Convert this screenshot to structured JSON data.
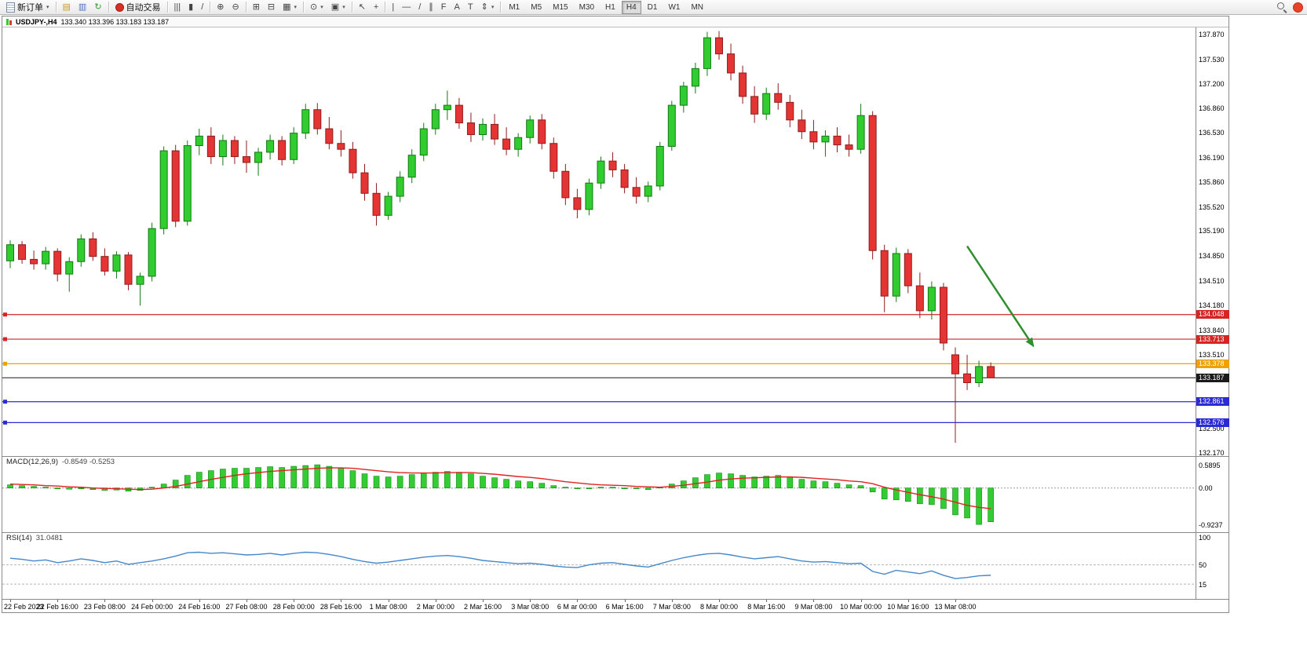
{
  "toolbar": {
    "new_order_label": "新订单",
    "autotrading_label": "自动交易",
    "window_icons": [
      {
        "name": "market-watch-icon",
        "glyph": "▤",
        "color": "#c79a1e"
      },
      {
        "name": "navigator-icon",
        "glyph": "▥",
        "color": "#4a6fc3"
      },
      {
        "name": "refresh-icon",
        "glyph": "↻",
        "color": "#2f9e2f"
      }
    ],
    "chart_icons": [
      {
        "name": "ohlc-bars-icon",
        "glyph": "|||"
      },
      {
        "name": "candlestick-chart-icon",
        "glyph": "▮"
      },
      {
        "name": "line-chart-icon",
        "glyph": "/"
      },
      {
        "sep": true
      },
      {
        "name": "zoom-in-icon",
        "glyph": "⊕"
      },
      {
        "name": "zoom-out-icon",
        "glyph": "⊖"
      },
      {
        "sep": true
      },
      {
        "name": "tile-windows-icon",
        "glyph": "⊞"
      },
      {
        "name": "cascade-windows-icon",
        "glyph": "⊟"
      },
      {
        "name": "new-chart-icon",
        "glyph": "▦",
        "dropdown": true
      },
      {
        "sep": true
      },
      {
        "name": "period-clock-icon",
        "glyph": "⊙",
        "dropdown": true
      },
      {
        "name": "templates-icon",
        "glyph": "▣",
        "dropdown": true
      },
      {
        "sep": true
      }
    ],
    "tool_icons": [
      {
        "name": "cursor-icon",
        "glyph": "↖"
      },
      {
        "name": "crosshair-icon",
        "glyph": "+"
      },
      {
        "sep": true
      },
      {
        "name": "vertical-line-icon",
        "glyph": "|"
      },
      {
        "name": "horizontal-line-icon",
        "glyph": "—"
      },
      {
        "name": "trendline-icon",
        "glyph": "/"
      },
      {
        "name": "channel-icon",
        "glyph": "∥"
      },
      {
        "name": "fibonacci-icon",
        "glyph": "F"
      },
      {
        "name": "text-icon",
        "glyph": "A"
      },
      {
        "name": "text-label-icon",
        "glyph": "T"
      },
      {
        "name": "arrows-icon",
        "glyph": "⇕",
        "dropdown": true
      },
      {
        "sep": true
      }
    ],
    "timeframes": [
      "M1",
      "M5",
      "M15",
      "M30",
      "H1",
      "H4",
      "D1",
      "W1",
      "MN"
    ],
    "active_timeframe": "H4"
  },
  "chart_data": [
    {
      "type": "candlestick",
      "title": "USDJPY-,H4",
      "ohlc_text": "133.340 133.396 133.183 133.187",
      "current_ohlc": {
        "open": 133.34,
        "high": 133.396,
        "low": 133.183,
        "close": 133.187
      },
      "ylim": [
        132.12,
        137.96
      ],
      "price_axis_ticks": [
        "137.870",
        "137.530",
        "137.200",
        "136.860",
        "136.530",
        "136.190",
        "135.860",
        "135.520",
        "135.190",
        "134.850",
        "134.510",
        "134.180",
        "133.840",
        "133.510",
        "132.500",
        "132.170"
      ],
      "label_every_n_candles": 4,
      "x_labels": [
        "22 Feb 2023",
        "22 Feb 16:00",
        "23 Feb 08:00",
        "24 Feb 00:00",
        "24 Feb 16:00",
        "27 Feb 08:00",
        "28 Feb 00:00",
        "28 Feb 16:00",
        "1 Mar 08:00",
        "2 Mar 00:00",
        "2 Mar 16:00",
        "3 Mar 08:00",
        "6 M ar 00:00",
        "6 Mar 16:00",
        "7 Mar 08:00",
        "8 Mar 00:00",
        "8 Mar 16:00",
        "9 Mar 08:00",
        "10 Mar 00:00",
        "10 Mar 16:00",
        "13 Mar 08:00"
      ],
      "candles_ohlc": [
        [
          134.78,
          135.06,
          134.68,
          135.0
        ],
        [
          135.0,
          135.05,
          134.74,
          134.8
        ],
        [
          134.8,
          134.92,
          134.66,
          134.74
        ],
        [
          134.74,
          134.97,
          134.66,
          134.91
        ],
        [
          134.91,
          134.95,
          134.5,
          134.6
        ],
        [
          134.6,
          134.83,
          134.36,
          134.77
        ],
        [
          134.77,
          135.14,
          134.7,
          135.08
        ],
        [
          135.08,
          135.17,
          134.78,
          134.84
        ],
        [
          134.84,
          134.95,
          134.58,
          134.64
        ],
        [
          134.64,
          134.91,
          134.54,
          134.86
        ],
        [
          134.86,
          134.9,
          134.38,
          134.46
        ],
        [
          134.46,
          134.62,
          134.17,
          134.57
        ],
        [
          134.57,
          135.3,
          134.5,
          135.22
        ],
        [
          135.22,
          136.34,
          135.14,
          136.28
        ],
        [
          136.28,
          136.36,
          135.24,
          135.32
        ],
        [
          135.32,
          136.42,
          135.26,
          136.35
        ],
        [
          136.35,
          136.58,
          136.22,
          136.48
        ],
        [
          136.48,
          136.6,
          136.1,
          136.2
        ],
        [
          136.2,
          136.5,
          136.08,
          136.42
        ],
        [
          136.42,
          136.48,
          136.1,
          136.2
        ],
        [
          136.2,
          136.42,
          135.98,
          136.12
        ],
        [
          136.12,
          136.32,
          135.94,
          136.26
        ],
        [
          136.26,
          136.5,
          136.16,
          136.42
        ],
        [
          136.42,
          136.48,
          136.08,
          136.16
        ],
        [
          136.16,
          136.6,
          136.1,
          136.52
        ],
        [
          136.52,
          136.92,
          136.44,
          136.84
        ],
        [
          136.84,
          136.93,
          136.5,
          136.58
        ],
        [
          136.58,
          136.74,
          136.3,
          136.38
        ],
        [
          136.38,
          136.56,
          136.2,
          136.3
        ],
        [
          136.3,
          136.4,
          135.9,
          135.98
        ],
        [
          135.98,
          136.1,
          135.6,
          135.7
        ],
        [
          135.7,
          135.84,
          135.26,
          135.4
        ],
        [
          135.4,
          135.72,
          135.34,
          135.66
        ],
        [
          135.66,
          136.0,
          135.58,
          135.92
        ],
        [
          135.92,
          136.3,
          135.84,
          136.22
        ],
        [
          136.22,
          136.66,
          136.14,
          136.58
        ],
        [
          136.58,
          136.92,
          136.5,
          136.84
        ],
        [
          136.84,
          137.1,
          136.7,
          136.9
        ],
        [
          136.9,
          137.0,
          136.58,
          136.66
        ],
        [
          136.66,
          136.8,
          136.4,
          136.5
        ],
        [
          136.5,
          136.72,
          136.42,
          136.64
        ],
        [
          136.64,
          136.78,
          136.36,
          136.44
        ],
        [
          136.44,
          136.6,
          136.22,
          136.3
        ],
        [
          136.3,
          136.52,
          136.2,
          136.46
        ],
        [
          136.46,
          136.76,
          136.38,
          136.7
        ],
        [
          136.7,
          136.78,
          136.3,
          136.38
        ],
        [
          136.38,
          136.46,
          135.9,
          136.0
        ],
        [
          136.0,
          136.1,
          135.54,
          135.64
        ],
        [
          135.64,
          135.76,
          135.36,
          135.48
        ],
        [
          135.48,
          135.9,
          135.4,
          135.84
        ],
        [
          135.84,
          136.2,
          135.76,
          136.14
        ],
        [
          136.14,
          136.26,
          135.92,
          136.02
        ],
        [
          136.02,
          136.1,
          135.7,
          135.78
        ],
        [
          135.78,
          135.92,
          135.56,
          135.66
        ],
        [
          135.66,
          135.86,
          135.58,
          135.8
        ],
        [
          135.8,
          136.4,
          135.74,
          136.34
        ],
        [
          136.34,
          136.96,
          136.28,
          136.9
        ],
        [
          136.9,
          137.22,
          136.8,
          137.16
        ],
        [
          137.16,
          137.48,
          137.06,
          137.4
        ],
        [
          137.4,
          137.9,
          137.3,
          137.82
        ],
        [
          137.82,
          137.91,
          137.52,
          137.6
        ],
        [
          137.6,
          137.74,
          137.24,
          137.34
        ],
        [
          137.34,
          137.44,
          136.92,
          137.02
        ],
        [
          137.02,
          137.16,
          136.66,
          136.78
        ],
        [
          136.78,
          137.14,
          136.7,
          137.06
        ],
        [
          137.06,
          137.2,
          136.84,
          136.94
        ],
        [
          136.94,
          137.04,
          136.6,
          136.7
        ],
        [
          136.7,
          136.84,
          136.44,
          136.54
        ],
        [
          136.54,
          136.7,
          136.3,
          136.4
        ],
        [
          136.4,
          136.56,
          136.2,
          136.48
        ],
        [
          136.48,
          136.6,
          136.26,
          136.36
        ],
        [
          136.36,
          136.5,
          136.2,
          136.3
        ],
        [
          136.3,
          136.92,
          136.24,
          136.76
        ],
        [
          136.76,
          136.82,
          134.8,
          134.92
        ],
        [
          134.92,
          135.0,
          134.08,
          134.3
        ],
        [
          134.3,
          134.96,
          134.22,
          134.88
        ],
        [
          134.88,
          134.94,
          134.34,
          134.44
        ],
        [
          134.44,
          134.62,
          134.0,
          134.1
        ],
        [
          134.1,
          134.5,
          133.98,
          134.42
        ],
        [
          134.42,
          134.48,
          133.56,
          133.66
        ],
        [
          133.5,
          133.6,
          132.3,
          133.24
        ],
        [
          133.24,
          133.5,
          133.02,
          133.12
        ],
        [
          133.12,
          133.42,
          133.06,
          133.34
        ],
        [
          133.34,
          133.396,
          133.183,
          133.187
        ]
      ],
      "hlines": [
        {
          "label": "134.048",
          "price": 134.048,
          "color": "#d42424"
        },
        {
          "label": "133.713",
          "price": 133.713,
          "color": "#d42424"
        },
        {
          "label": "133.378",
          "price": 133.378,
          "color": "#efa100"
        },
        {
          "label": "133.187",
          "price": 133.187,
          "color": "#1a1a1a",
          "current": true
        },
        {
          "label": "132.861",
          "price": 132.861,
          "color": "#2b2bd4"
        },
        {
          "label": "132.576",
          "price": 132.576,
          "color": "#2b2bd4"
        }
      ],
      "arrow_annotation": {
        "from_index": 81,
        "from_price": 134.98,
        "to_index": 86.6,
        "to_price": 133.62,
        "color": "#2f8f2f"
      },
      "colors": {
        "bull": "#30cc30",
        "bear": "#e43434",
        "bull_stroke": "#127a12",
        "bear_stroke": "#8f1d1d"
      }
    },
    {
      "type": "bar",
      "title": "MACD(12,26,9)",
      "values_text": "-0.8549 -0.5253",
      "ylim": [
        -1.12,
        0.79
      ],
      "axis_ticks": [
        {
          "label": "0.5895",
          "value": 0.5895
        },
        {
          "label": "0.00",
          "value": 0
        },
        {
          "label": "-0.9237",
          "value": -0.9237
        }
      ],
      "histogram": [
        0.08,
        0.06,
        0.04,
        0.02,
        0.0,
        -0.03,
        -0.02,
        -0.04,
        -0.06,
        -0.05,
        -0.08,
        -0.06,
        0.02,
        0.1,
        0.2,
        0.32,
        0.4,
        0.44,
        0.48,
        0.5,
        0.5,
        0.52,
        0.54,
        0.52,
        0.55,
        0.57,
        0.589,
        0.55,
        0.5,
        0.44,
        0.36,
        0.3,
        0.28,
        0.3,
        0.34,
        0.38,
        0.4,
        0.42,
        0.4,
        0.36,
        0.3,
        0.26,
        0.22,
        0.18,
        0.16,
        0.12,
        0.06,
        0.02,
        -0.02,
        0.0,
        0.02,
        0.02,
        0.0,
        -0.02,
        -0.04,
        0.02,
        0.1,
        0.18,
        0.26,
        0.34,
        0.38,
        0.36,
        0.32,
        0.28,
        0.3,
        0.32,
        0.28,
        0.22,
        0.18,
        0.16,
        0.12,
        0.08,
        0.06,
        -0.1,
        -0.28,
        -0.3,
        -0.34,
        -0.4,
        -0.42,
        -0.52,
        -0.68,
        -0.76,
        -0.924,
        -0.855
      ],
      "signal": [
        0.1,
        0.09,
        0.08,
        0.06,
        0.05,
        0.03,
        0.02,
        0.0,
        -0.01,
        -0.02,
        -0.03,
        -0.04,
        -0.03,
        0.0,
        0.04,
        0.1,
        0.16,
        0.22,
        0.27,
        0.32,
        0.36,
        0.39,
        0.42,
        0.44,
        0.46,
        0.48,
        0.5,
        0.51,
        0.51,
        0.5,
        0.47,
        0.44,
        0.41,
        0.39,
        0.38,
        0.38,
        0.38,
        0.39,
        0.39,
        0.39,
        0.37,
        0.35,
        0.32,
        0.29,
        0.27,
        0.24,
        0.2,
        0.16,
        0.13,
        0.1,
        0.08,
        0.07,
        0.06,
        0.04,
        0.03,
        0.02,
        0.04,
        0.07,
        0.11,
        0.15,
        0.2,
        0.23,
        0.25,
        0.26,
        0.27,
        0.28,
        0.28,
        0.27,
        0.25,
        0.23,
        0.21,
        0.18,
        0.16,
        0.11,
        0.02,
        -0.05,
        -0.11,
        -0.17,
        -0.22,
        -0.28,
        -0.36,
        -0.44,
        -0.49,
        -0.5253
      ],
      "colors": {
        "histogram": "#33cc33",
        "histogram_stroke": "#0f8a0f",
        "signal": "#e02222"
      }
    },
    {
      "type": "line",
      "title": "RSI(14)",
      "values_text": "31.0481",
      "ylim": [
        -12,
        108
      ],
      "axis_ticks": [
        {
          "label": "100",
          "value": 100
        },
        {
          "label": "50",
          "value": 50
        },
        {
          "label": "15",
          "value": 15
        }
      ],
      "levels_dashed": [
        50,
        15
      ],
      "values": [
        62,
        60,
        57,
        59,
        54,
        57,
        61,
        58,
        54,
        57,
        51,
        54,
        57,
        61,
        66,
        72,
        73,
        71,
        72,
        70,
        68,
        69,
        71,
        68,
        71,
        73,
        72,
        69,
        65,
        60,
        56,
        53,
        55,
        58,
        61,
        64,
        66,
        67,
        65,
        62,
        58,
        56,
        54,
        52,
        53,
        51,
        48,
        46,
        45,
        50,
        53,
        54,
        51,
        48,
        46,
        52,
        58,
        63,
        67,
        70,
        71,
        68,
        64,
        61,
        63,
        65,
        61,
        57,
        55,
        56,
        54,
        52,
        53,
        38,
        33,
        40,
        37,
        34,
        39,
        31,
        25,
        27,
        30,
        31.0481
      ],
      "colors": {
        "line": "#4488cc"
      }
    }
  ]
}
